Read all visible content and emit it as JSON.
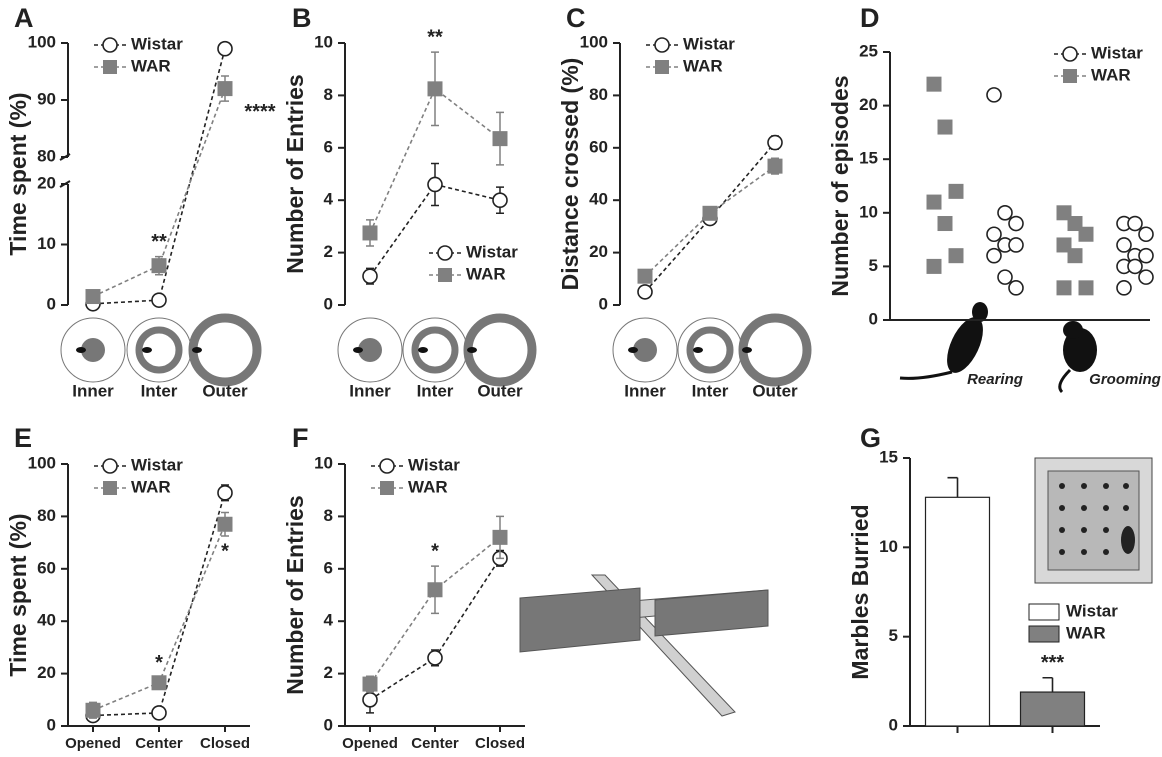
{
  "chart_data": [
    {
      "type": "line",
      "label": "A",
      "ylabel": "Time  spent (%)",
      "categories": [
        "Inner",
        "Inter",
        "Outer"
      ],
      "series": [
        {
          "name": "Wistar",
          "color": "#ffffff",
          "values": [
            0.2,
            0.8,
            99
          ],
          "errors": [
            0.3,
            0.3,
            0.5
          ]
        },
        {
          "name": "WAR",
          "color": "#808080",
          "values": [
            1.4,
            6.5,
            92
          ],
          "errors": [
            0.5,
            1.5,
            2.2
          ]
        }
      ],
      "ylim": [
        0,
        100
      ],
      "yticks": [
        0,
        10,
        20,
        80,
        90,
        100
      ],
      "axis_break": [
        20,
        80
      ],
      "legend": "upper left",
      "annotations": [
        {
          "text": "**",
          "at": "Inter",
          "position": "above"
        },
        {
          "text": "****",
          "at": "Outer",
          "position": "below-right"
        }
      ]
    },
    {
      "type": "line",
      "label": "B",
      "ylabel": "Number of  Entries",
      "categories": [
        "Inner",
        "Inter",
        "Outer"
      ],
      "series": [
        {
          "name": "Wistar",
          "color": "#ffffff",
          "values": [
            1.1,
            4.6,
            4.0
          ],
          "errors": [
            0.3,
            0.8,
            0.5
          ]
        },
        {
          "name": "WAR",
          "color": "#808080",
          "values": [
            2.75,
            8.25,
            6.35
          ],
          "errors": [
            0.5,
            1.4,
            1.0
          ]
        }
      ],
      "ylim": [
        0,
        10
      ],
      "yticks": [
        0,
        2,
        4,
        6,
        8,
        10
      ],
      "legend": "lower right",
      "annotations": [
        {
          "text": "**",
          "at": "Inter",
          "position": "above"
        }
      ]
    },
    {
      "type": "line",
      "label": "C",
      "ylabel": "Distance crossed (%)",
      "categories": [
        "Inner",
        "Inter",
        "Outer"
      ],
      "series": [
        {
          "name": "Wistar",
          "color": "#ffffff",
          "values": [
            5,
            33,
            62
          ],
          "errors": [
            1.5,
            1.5,
            2.5
          ]
        },
        {
          "name": "WAR",
          "color": "#808080",
          "values": [
            11,
            35,
            53
          ],
          "errors": [
            1.5,
            1.5,
            3
          ]
        }
      ],
      "ylim": [
        0,
        100
      ],
      "yticks": [
        0,
        20,
        40,
        60,
        80,
        100
      ],
      "legend": "upper left"
    },
    {
      "type": "scatter",
      "label": "D",
      "ylabel": "Number of episodes",
      "categories": [
        "Rearing",
        "Grooming"
      ],
      "series": [
        {
          "name": "Wistar",
          "color": "#ffffff",
          "values": [
            [
              21,
              10,
              9,
              8,
              7,
              7,
              6,
              4,
              3
            ],
            [
              9,
              9,
              8,
              7,
              6,
              6,
              5,
              5,
              4,
              3
            ]
          ]
        },
        {
          "name": "WAR",
          "color": "#808080",
          "values": [
            [
              22,
              18,
              12,
              11,
              9,
              6,
              5
            ],
            [
              10,
              9,
              8,
              7,
              6,
              3,
              3
            ]
          ]
        }
      ],
      "ylim": [
        0,
        25
      ],
      "yticks": [
        0,
        5,
        10,
        15,
        20,
        25
      ],
      "legend": "upper right"
    },
    {
      "type": "line",
      "label": "E",
      "ylabel": "Time  spent (%)",
      "categories": [
        "Opened",
        "Center",
        "Closed"
      ],
      "series": [
        {
          "name": "Wistar",
          "color": "#ffffff",
          "values": [
            4,
            5,
            89
          ],
          "errors": [
            1,
            1,
            3
          ]
        },
        {
          "name": "WAR",
          "color": "#808080",
          "values": [
            6,
            16.5,
            77
          ],
          "errors": [
            3,
            2,
            4.5
          ]
        }
      ],
      "ylim": [
        0,
        100
      ],
      "yticks": [
        0,
        20,
        40,
        60,
        80,
        100
      ],
      "legend": "upper left",
      "annotations": [
        {
          "text": "*",
          "at": "Center",
          "position": "above"
        },
        {
          "text": "*",
          "at": "Closed",
          "position": "below"
        }
      ]
    },
    {
      "type": "line",
      "label": "F",
      "ylabel": "Number of  Entries",
      "categories": [
        "Opened",
        "Center",
        "Closed"
      ],
      "series": [
        {
          "name": "Wistar",
          "color": "#ffffff",
          "values": [
            1.0,
            2.6,
            6.4
          ],
          "errors": [
            0.5,
            0.3,
            0.3
          ]
        },
        {
          "name": "WAR",
          "color": "#808080",
          "values": [
            1.6,
            5.2,
            7.2
          ],
          "errors": [
            0.3,
            0.9,
            0.8
          ]
        }
      ],
      "ylim": [
        0,
        10
      ],
      "yticks": [
        0,
        2,
        4,
        6,
        8,
        10
      ],
      "legend": "upper left",
      "annotations": [
        {
          "text": "*",
          "at": "Center",
          "position": "above"
        }
      ]
    },
    {
      "type": "bar",
      "label": "G",
      "ylabel": "Marbles Burried",
      "series": [
        {
          "name": "Wistar",
          "color": "#ffffff",
          "values": [
            12.8
          ],
          "errors": [
            1.1
          ]
        },
        {
          "name": "WAR",
          "color": "#808080",
          "values": [
            1.9
          ],
          "errors": [
            0.8
          ]
        }
      ],
      "ylim": [
        0,
        15
      ],
      "yticks": [
        0,
        5,
        10,
        15
      ],
      "legend": "center right",
      "annotations": [
        {
          "text": "***",
          "at": "WAR",
          "position": "above"
        }
      ]
    }
  ]
}
